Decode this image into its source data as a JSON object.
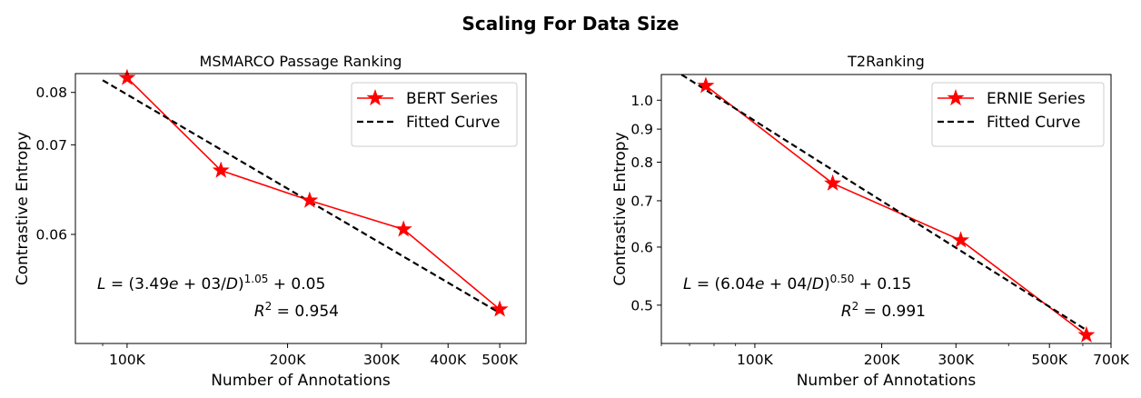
{
  "figure": {
    "suptitle": "Scaling For Data Size"
  },
  "chart_data": [
    {
      "type": "line",
      "title": "MSMARCO Passage Ranking",
      "xlabel": "Number of Annotations",
      "ylabel": "Contrastive Entropy",
      "xscale": "log",
      "yscale": "log(L - 0.05)",
      "xlim": [
        80000,
        560000
      ],
      "x_ticks": [
        {
          "value": 100000,
          "label": "100K"
        },
        {
          "value": 200000,
          "label": "200K"
        },
        {
          "value": 300000,
          "label": "300K"
        },
        {
          "value": 400000,
          "label": "400K"
        },
        {
          "value": 500000,
          "label": "500K"
        }
      ],
      "x_minor_ticks": [
        90000
      ],
      "y_ticks": [
        {
          "value": 0.08,
          "label": "0.08"
        },
        {
          "value": 0.07,
          "label": "0.07"
        },
        {
          "value": 0.06,
          "label": "0.06"
        }
      ],
      "ylim": [
        0.0543,
        0.0847
      ],
      "y_offset": 0.05,
      "series": [
        {
          "name": "BERT Series",
          "color": "#ff0000",
          "marker": "star",
          "x": [
            100000,
            150000,
            220000,
            330000,
            500000
          ],
          "y": [
            0.0836,
            0.0664,
            0.063,
            0.0604,
            0.0556
          ]
        },
        {
          "name": "Fitted Curve",
          "color": "#000000",
          "style": "dashed",
          "fit": {
            "A": 3490,
            "alpha": 1.05,
            "E": 0.05
          },
          "x_range": [
            90000,
            500000
          ]
        }
      ],
      "legend": {
        "position": "top-right",
        "entries": [
          "BERT Series",
          "Fitted Curve"
        ]
      },
      "annotations": {
        "formula": {
          "L": "L",
          "eq": " = (3.49",
          "e": "e",
          "mid": " + 03/",
          "D": "D",
          "close": ")",
          "exp": "1.05",
          "tail": " + 0.05"
        },
        "r2": {
          "R": "R",
          "sup": "2",
          "value": " = 0.954"
        }
      }
    },
    {
      "type": "line",
      "title": "T2Ranking",
      "xlabel": "Number of Annotations",
      "ylabel": "Contrastive Entropy",
      "xscale": "log",
      "yscale": "log(L - 0.15)",
      "xlim": [
        60000,
        700000
      ],
      "x_ticks": [
        {
          "value": 100000,
          "label": "100K"
        },
        {
          "value": 200000,
          "label": "200K"
        },
        {
          "value": 300000,
          "label": "300K"
        },
        {
          "value": 500000,
          "label": "500K"
        },
        {
          "value": 700000,
          "label": "700K"
        }
      ],
      "x_minor_ticks": [
        60000,
        70000,
        80000,
        90000,
        400000,
        600000
      ],
      "y_ticks": [
        {
          "value": 1.0,
          "label": "1.0"
        },
        {
          "value": 0.9,
          "label": "0.9"
        },
        {
          "value": 0.8,
          "label": "0.8"
        },
        {
          "value": 0.7,
          "label": "0.7"
        },
        {
          "value": 0.6,
          "label": "0.6"
        },
        {
          "value": 0.5,
          "label": "0.5"
        }
      ],
      "ylim": [
        0.4465,
        1.1
      ],
      "y_offset": 0.15,
      "series": [
        {
          "name": "ERNIE Series",
          "color": "#ff0000",
          "marker": "star",
          "x": [
            76500,
            153000,
            308000,
            612000
          ],
          "y": [
            1.055,
            0.743,
            0.6135,
            0.4575
          ]
        },
        {
          "name": "Fitted Curve",
          "color": "#000000",
          "style": "dashed",
          "fit": {
            "A": 60400,
            "alpha": 0.5,
            "E": 0.15
          },
          "x_range": [
            67000,
            612000
          ]
        }
      ],
      "legend": {
        "position": "top-right",
        "entries": [
          "ERNIE Series",
          "Fitted Curve"
        ]
      },
      "annotations": {
        "formula": {
          "L": "L",
          "eq": " = (6.04",
          "e": "e",
          "mid": " + 04/",
          "D": "D",
          "close": ")",
          "exp": "0.50",
          "tail": " + 0.15"
        },
        "r2": {
          "R": "R",
          "sup": "2",
          "value": " = 0.991"
        }
      }
    }
  ]
}
